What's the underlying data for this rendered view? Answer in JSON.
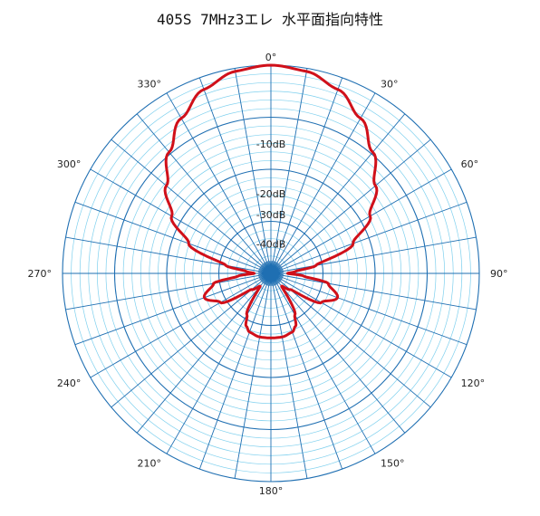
{
  "title": "405S 7MHz3エレ 水平面指向特性",
  "colors": {
    "grid_major": "#1f6fb2",
    "grid_minor": "#7fd0ee",
    "pattern": "#d0101a",
    "background": "#ffffff"
  },
  "chart_data": {
    "type": "polar",
    "title": "405S 7MHz3エレ 水平面指向特性",
    "angle_unit": "degree",
    "angle_labels": [
      "0°",
      "30°",
      "60°",
      "90°",
      "120°",
      "150°",
      "180°",
      "210°",
      "240°",
      "270°",
      "300°",
      "330°"
    ],
    "angle_ticks": [
      0,
      30,
      60,
      90,
      120,
      150,
      180,
      210,
      240,
      270,
      300,
      330
    ],
    "radial_labels": [
      "-10dB",
      "-20dB",
      "-30dB",
      "-40dB"
    ],
    "radial_values_db": [
      -10,
      -20,
      -30,
      -40
    ],
    "radial_label_fraction": [
      0.605,
      0.365,
      0.265,
      0.125
    ],
    "grid": true,
    "series": [
      {
        "angles_deg": [
          0,
          10,
          20,
          30,
          40,
          50,
          60,
          70,
          80,
          85,
          90,
          95,
          100,
          110,
          120,
          130,
          140,
          150,
          155,
          160,
          170,
          180,
          190,
          200,
          205,
          210,
          220,
          230,
          240,
          250,
          260,
          265,
          270,
          275,
          280,
          290,
          300,
          310,
          320,
          330,
          340,
          350,
          360
        ],
        "relative_level": [
          1.0,
          0.985,
          0.94,
          0.86,
          0.76,
          0.655,
          0.55,
          0.42,
          0.22,
          0.12,
          0.08,
          0.16,
          0.28,
          0.34,
          0.28,
          0.12,
          0.08,
          0.23,
          0.28,
          0.3,
          0.31,
          0.31,
          0.31,
          0.3,
          0.28,
          0.23,
          0.08,
          0.12,
          0.28,
          0.34,
          0.28,
          0.16,
          0.08,
          0.12,
          0.22,
          0.42,
          0.55,
          0.655,
          0.76,
          0.86,
          0.94,
          0.985,
          1.0
        ]
      }
    ]
  }
}
